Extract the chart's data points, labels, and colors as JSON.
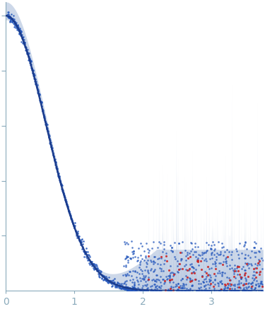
{
  "title": "",
  "xlabel": "",
  "ylabel": "",
  "xlim": [
    0,
    3.75
  ],
  "ylim": [
    0,
    1.05
  ],
  "x_ticks": [
    0,
    1,
    2,
    3
  ],
  "background_color": "#ffffff",
  "curve_color": "#1a3a8a",
  "band_color": "#b8c8e0",
  "dot_color": "#2255bb",
  "outlier_color": "#cc2222",
  "axis_color": "#8aaabb",
  "band_alpha": 0.7,
  "dot_alpha": 0.75,
  "outlier_alpha": 0.85
}
